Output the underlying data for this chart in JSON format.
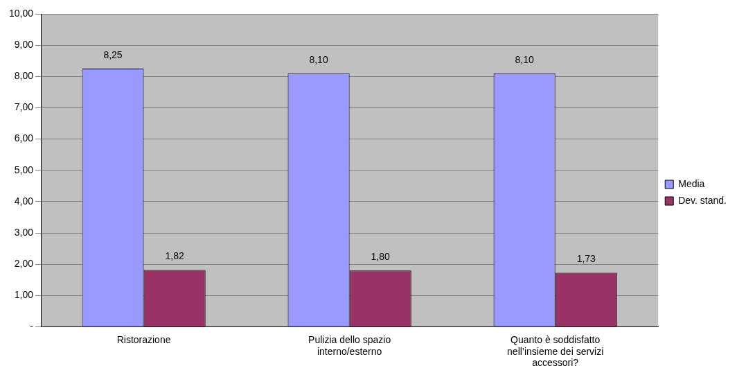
{
  "chart_data": {
    "type": "bar",
    "categories": [
      "Ristorazione",
      "Pulizia dello spazio interno/esterno",
      "Quanto è soddisfatto nell’insieme dei servizi accessori?"
    ],
    "series": [
      {
        "name": "Media",
        "color": "#9999ff",
        "values": [
          8.25,
          8.1,
          8.1
        ],
        "value_labels": [
          "8,25",
          "8,10",
          "8,10"
        ]
      },
      {
        "name": "Dev. stand.",
        "color": "#993366",
        "values": [
          1.82,
          1.8,
          1.73
        ],
        "value_labels": [
          "1,82",
          "1,80",
          "1,73"
        ]
      }
    ],
    "ylim": [
      0,
      10
    ],
    "yticks": [
      {
        "value": 0,
        "label": "-"
      },
      {
        "value": 1,
        "label": "1,00"
      },
      {
        "value": 2,
        "label": "2,00"
      },
      {
        "value": 3,
        "label": "3,00"
      },
      {
        "value": 4,
        "label": "4,00"
      },
      {
        "value": 5,
        "label": "5,00"
      },
      {
        "value": 6,
        "label": "6,00"
      },
      {
        "value": 7,
        "label": "7,00"
      },
      {
        "value": 8,
        "label": "8,00"
      },
      {
        "value": 9,
        "label": "9,00"
      },
      {
        "value": 10,
        "label": "10,00"
      }
    ],
    "grid": "y",
    "legend": "right"
  }
}
